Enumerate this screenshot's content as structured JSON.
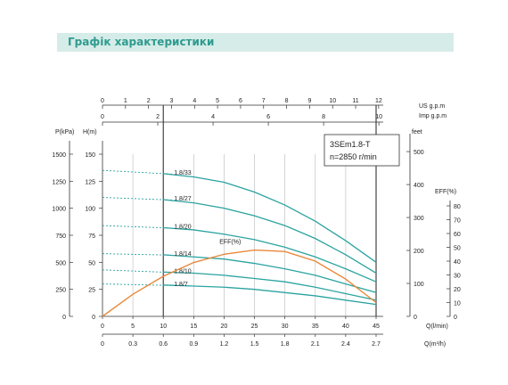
{
  "header": {
    "title": "Графік характеристики"
  },
  "legend_box": {
    "model": "3SEm1.8-T",
    "speed": "n=2850 r/min"
  },
  "colors": {
    "head_curve": "#2aa3a0",
    "eff_curve": "#e8883a",
    "grid": "#b8b8b8",
    "frame": "#333333"
  },
  "chart_data": {
    "type": "line",
    "title": "",
    "xlabel": "Q(l/min)",
    "xlim": [
      0,
      45
    ],
    "ylabel": "H(m)",
    "ylim": [
      0,
      150
    ],
    "grid": true,
    "axes": {
      "q_lmin": {
        "label": "Q(l/min)",
        "ticks": [
          0,
          5,
          10,
          15,
          20,
          25,
          30,
          35,
          40,
          45
        ]
      },
      "q_m3h": {
        "label": "Q(m³/h)",
        "ticks": [
          "0",
          "0.3",
          "0.6",
          "0.9",
          "1.2",
          "1.5",
          "1.8",
          "2.1",
          "2.4",
          "2.7"
        ]
      },
      "us_gpm": {
        "label": "US  g.p.m",
        "ticks": [
          0,
          1,
          2,
          3,
          4,
          5,
          6,
          7,
          8,
          9,
          10,
          11,
          12
        ]
      },
      "imp_gpm": {
        "label": "Imp  g.p.m",
        "ticks": [
          0,
          2,
          4,
          6,
          8,
          10
        ]
      },
      "p_kpa": {
        "label": "P(kPa)",
        "ticks": [
          0,
          250,
          500,
          750,
          1000,
          1250,
          1500
        ]
      },
      "h_m": {
        "label": "H(m)",
        "ticks": [
          0,
          25,
          50,
          75,
          100,
          125,
          150
        ]
      },
      "feet": {
        "label": "feet",
        "ticks": [
          0,
          100,
          200,
          300,
          400,
          500
        ]
      },
      "eff": {
        "label": "EFF(%)",
        "ticks": [
          0,
          10,
          20,
          30,
          40,
          50,
          60,
          70,
          80
        ]
      }
    },
    "operating_range": [
      10,
      45
    ],
    "series": [
      {
        "name": "1.8/33",
        "shutoff": 135,
        "x": [
          10,
          15,
          20,
          25,
          30,
          35,
          40,
          45
        ],
        "y": [
          132,
          129,
          124,
          115,
          103,
          88,
          70,
          50
        ]
      },
      {
        "name": "1.8/27",
        "shutoff": 110,
        "x": [
          10,
          15,
          20,
          25,
          30,
          35,
          40,
          45
        ],
        "y": [
          108,
          105,
          100,
          93,
          84,
          72,
          57,
          40
        ]
      },
      {
        "name": "1.8/20",
        "shutoff": 84,
        "x": [
          10,
          15,
          20,
          25,
          30,
          35,
          40,
          45
        ],
        "y": [
          82,
          80,
          76,
          71,
          64,
          55,
          44,
          32
        ]
      },
      {
        "name": "1.8/14",
        "shutoff": 58,
        "x": [
          10,
          15,
          20,
          25,
          30,
          35,
          40,
          45
        ],
        "y": [
          57,
          55,
          53,
          49,
          44,
          38,
          30,
          22
        ]
      },
      {
        "name": "1.8/10",
        "shutoff": 43,
        "x": [
          10,
          15,
          20,
          25,
          30,
          35,
          40,
          45
        ],
        "y": [
          41,
          40,
          38,
          35,
          32,
          27,
          21,
          15
        ]
      },
      {
        "name": "1.8/7",
        "shutoff": 30,
        "x": [
          10,
          15,
          20,
          25,
          30,
          35,
          40,
          45
        ],
        "y": [
          29,
          28,
          27,
          25,
          22,
          19,
          15,
          11
        ]
      }
    ],
    "efficiency": {
      "name": "EFF(%)",
      "x": [
        0,
        5,
        10,
        15,
        20,
        25,
        30,
        35,
        40,
        45
      ],
      "y": [
        0,
        16,
        29,
        39,
        45,
        48,
        47,
        40,
        27,
        10
      ]
    }
  }
}
